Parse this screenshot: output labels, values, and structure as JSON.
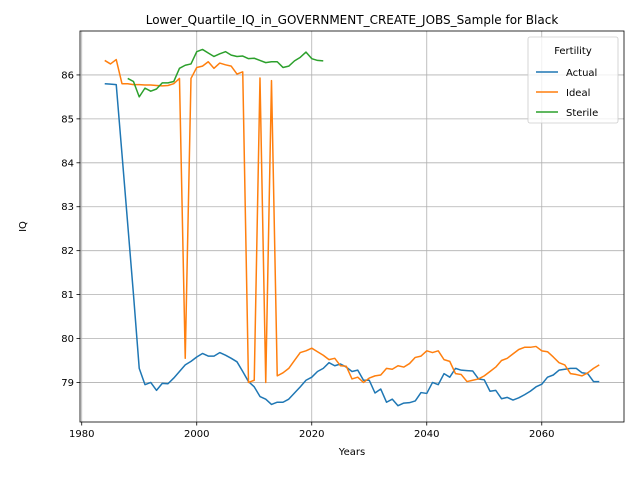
{
  "chart_data": {
    "type": "line",
    "title": "Lower_Quartile_IQ_in_GOVERNMENT_CREATE_JOBS_Sample for Black",
    "xlabel": "Years",
    "ylabel": "IQ",
    "xlim": [
      1979.7,
      2074.3
    ],
    "ylim": [
      78.1,
      87.0
    ],
    "xticks": [
      1980,
      2000,
      2020,
      2040,
      2060
    ],
    "yticks": [
      79,
      80,
      81,
      82,
      83,
      84,
      85,
      86
    ],
    "grid": true,
    "legend": {
      "title": "Fertility",
      "placement": "top-right"
    },
    "series": [
      {
        "name": "Actual",
        "color": "#1f77b4",
        "points": [
          [
            1984,
            85.8
          ],
          [
            1985,
            85.79
          ],
          [
            1986,
            85.78
          ],
          [
            1987,
            84.2
          ],
          [
            1988,
            82.6
          ],
          [
            1989,
            81.0
          ],
          [
            1990,
            79.32
          ],
          [
            1991,
            78.95
          ],
          [
            1992,
            79.0
          ],
          [
            1993,
            78.82
          ],
          [
            1994,
            78.98
          ],
          [
            1995,
            78.97
          ],
          [
            1996,
            79.1
          ],
          [
            1997,
            79.25
          ],
          [
            1998,
            79.4
          ],
          [
            1999,
            79.48
          ],
          [
            2000,
            79.58
          ],
          [
            2001,
            79.66
          ],
          [
            2002,
            79.6
          ],
          [
            2003,
            79.6
          ],
          [
            2004,
            79.68
          ],
          [
            2005,
            79.62
          ],
          [
            2006,
            79.55
          ],
          [
            2007,
            79.47
          ],
          [
            2008,
            79.25
          ],
          [
            2009,
            79.02
          ],
          [
            2010,
            78.9
          ],
          [
            2011,
            78.68
          ],
          [
            2012,
            78.62
          ],
          [
            2013,
            78.5
          ],
          [
            2014,
            78.55
          ],
          [
            2015,
            78.55
          ],
          [
            2016,
            78.62
          ],
          [
            2017,
            78.76
          ],
          [
            2018,
            78.9
          ],
          [
            2019,
            79.05
          ],
          [
            2020,
            79.12
          ],
          [
            2021,
            79.25
          ],
          [
            2022,
            79.32
          ],
          [
            2023,
            79.45
          ],
          [
            2024,
            79.38
          ],
          [
            2025,
            79.42
          ],
          [
            2026,
            79.35
          ],
          [
            2027,
            79.25
          ],
          [
            2028,
            79.28
          ],
          [
            2029,
            79.05
          ],
          [
            2030,
            79.05
          ],
          [
            2031,
            78.76
          ],
          [
            2032,
            78.85
          ],
          [
            2033,
            78.55
          ],
          [
            2034,
            78.62
          ],
          [
            2035,
            78.47
          ],
          [
            2036,
            78.53
          ],
          [
            2037,
            78.54
          ],
          [
            2038,
            78.58
          ],
          [
            2039,
            78.77
          ],
          [
            2040,
            78.75
          ],
          [
            2041,
            79.0
          ],
          [
            2042,
            78.95
          ],
          [
            2043,
            79.2
          ],
          [
            2044,
            79.12
          ],
          [
            2045,
            79.32
          ],
          [
            2046,
            79.28
          ],
          [
            2047,
            79.27
          ],
          [
            2048,
            79.26
          ],
          [
            2049,
            79.08
          ],
          [
            2050,
            79.06
          ],
          [
            2051,
            78.8
          ],
          [
            2052,
            78.82
          ],
          [
            2053,
            78.63
          ],
          [
            2054,
            78.66
          ],
          [
            2055,
            78.6
          ],
          [
            2056,
            78.65
          ],
          [
            2057,
            78.72
          ],
          [
            2058,
            78.8
          ],
          [
            2059,
            78.9
          ],
          [
            2060,
            78.96
          ],
          [
            2061,
            79.12
          ],
          [
            2062,
            79.17
          ],
          [
            2063,
            79.28
          ],
          [
            2064,
            79.3
          ],
          [
            2065,
            79.32
          ],
          [
            2066,
            79.32
          ],
          [
            2067,
            79.22
          ],
          [
            2068,
            79.2
          ],
          [
            2069,
            79.02
          ],
          [
            2070,
            79.02
          ]
        ]
      },
      {
        "name": "Ideal",
        "color": "#ff7f0e",
        "points": [
          [
            1984,
            86.33
          ],
          [
            1985,
            86.25
          ],
          [
            1986,
            86.35
          ],
          [
            1987,
            85.8
          ],
          [
            1988,
            85.8
          ],
          [
            1989,
            85.78
          ],
          [
            1990,
            85.78
          ],
          [
            1991,
            85.77
          ],
          [
            1992,
            85.77
          ],
          [
            1993,
            85.76
          ],
          [
            1994,
            85.75
          ],
          [
            1995,
            85.76
          ],
          [
            1996,
            85.8
          ],
          [
            1997,
            85.92
          ],
          [
            1998,
            79.55
          ],
          [
            1999,
            85.92
          ],
          [
            2000,
            86.17
          ],
          [
            2001,
            86.2
          ],
          [
            2002,
            86.3
          ],
          [
            2003,
            86.15
          ],
          [
            2004,
            86.27
          ],
          [
            2005,
            86.23
          ],
          [
            2006,
            86.2
          ],
          [
            2007,
            86.02
          ],
          [
            2008,
            86.07
          ],
          [
            2009,
            79.0
          ],
          [
            2010,
            79.05
          ],
          [
            2011,
            85.93
          ],
          [
            2012,
            79.0
          ],
          [
            2013,
            85.87
          ],
          [
            2014,
            79.15
          ],
          [
            2015,
            79.22
          ],
          [
            2016,
            79.32
          ],
          [
            2017,
            79.5
          ],
          [
            2018,
            79.68
          ],
          [
            2019,
            79.72
          ],
          [
            2020,
            79.78
          ],
          [
            2021,
            79.7
          ],
          [
            2022,
            79.62
          ],
          [
            2023,
            79.52
          ],
          [
            2024,
            79.55
          ],
          [
            2025,
            79.38
          ],
          [
            2026,
            79.37
          ],
          [
            2027,
            79.08
          ],
          [
            2028,
            79.12
          ],
          [
            2029,
            79.0
          ],
          [
            2030,
            79.1
          ],
          [
            2031,
            79.15
          ],
          [
            2032,
            79.17
          ],
          [
            2033,
            79.32
          ],
          [
            2034,
            79.3
          ],
          [
            2035,
            79.38
          ],
          [
            2036,
            79.35
          ],
          [
            2037,
            79.43
          ],
          [
            2038,
            79.57
          ],
          [
            2039,
            79.6
          ],
          [
            2040,
            79.72
          ],
          [
            2041,
            79.68
          ],
          [
            2042,
            79.72
          ],
          [
            2043,
            79.52
          ],
          [
            2044,
            79.48
          ],
          [
            2045,
            79.2
          ],
          [
            2046,
            79.18
          ],
          [
            2047,
            79.02
          ],
          [
            2048,
            79.05
          ],
          [
            2049,
            79.08
          ],
          [
            2050,
            79.15
          ],
          [
            2051,
            79.25
          ],
          [
            2052,
            79.35
          ],
          [
            2053,
            79.5
          ],
          [
            2054,
            79.55
          ],
          [
            2055,
            79.65
          ],
          [
            2056,
            79.75
          ],
          [
            2057,
            79.8
          ],
          [
            2058,
            79.8
          ],
          [
            2059,
            79.82
          ],
          [
            2060,
            79.72
          ],
          [
            2061,
            79.7
          ],
          [
            2062,
            79.58
          ],
          [
            2063,
            79.45
          ],
          [
            2064,
            79.4
          ],
          [
            2065,
            79.2
          ],
          [
            2066,
            79.18
          ],
          [
            2067,
            79.15
          ],
          [
            2068,
            79.22
          ],
          [
            2069,
            79.32
          ],
          [
            2070,
            79.4
          ]
        ]
      },
      {
        "name": "Sterile",
        "color": "#2ca02c",
        "points": [
          [
            1988,
            85.92
          ],
          [
            1989,
            85.85
          ],
          [
            1990,
            85.5
          ],
          [
            1991,
            85.7
          ],
          [
            1992,
            85.63
          ],
          [
            1993,
            85.68
          ],
          [
            1994,
            85.82
          ],
          [
            1995,
            85.82
          ],
          [
            1996,
            85.85
          ],
          [
            1997,
            86.15
          ],
          [
            1998,
            86.22
          ],
          [
            1999,
            86.25
          ],
          [
            2000,
            86.53
          ],
          [
            2001,
            86.58
          ],
          [
            2002,
            86.5
          ],
          [
            2003,
            86.42
          ],
          [
            2004,
            86.48
          ],
          [
            2005,
            86.53
          ],
          [
            2006,
            86.45
          ],
          [
            2007,
            86.42
          ],
          [
            2008,
            86.43
          ],
          [
            2009,
            86.37
          ],
          [
            2010,
            86.38
          ],
          [
            2011,
            86.33
          ],
          [
            2012,
            86.28
          ],
          [
            2013,
            86.3
          ],
          [
            2014,
            86.3
          ],
          [
            2015,
            86.17
          ],
          [
            2016,
            86.2
          ],
          [
            2017,
            86.32
          ],
          [
            2018,
            86.4
          ],
          [
            2019,
            86.52
          ],
          [
            2020,
            86.37
          ],
          [
            2021,
            86.33
          ],
          [
            2022,
            86.32
          ]
        ]
      }
    ]
  }
}
